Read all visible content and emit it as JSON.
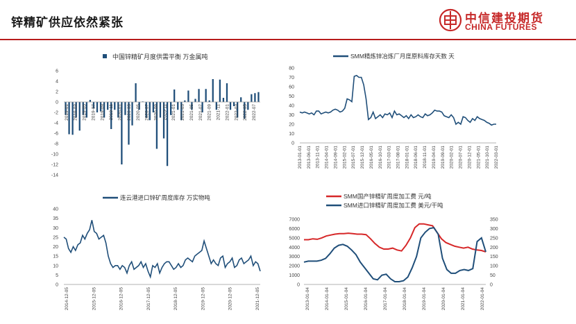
{
  "header": {
    "title": "锌精矿供应依然紧张",
    "logo_cn": "中信建投期货",
    "logo_en": "CHINA FUTURES",
    "accent_color": "#b71c1c"
  },
  "chart_data": [
    {
      "type": "bar",
      "title": "中国锌精矿月度供需平衡 万金属吨",
      "legend": [
        "中国锌精矿月度供需平衡 万金属吨"
      ],
      "color": "#1f4e79",
      "ylim": [
        -14,
        6
      ],
      "yticks": [
        6,
        4,
        2,
        0,
        -2,
        -4,
        -6,
        -8,
        -10,
        -12,
        -14
      ],
      "xtick_labels": [
        "2019-01",
        "2019-03",
        "2019-05",
        "2019-07",
        "2019-09",
        "2019-11",
        "2020-01",
        "2020-03",
        "2020-05",
        "2020-07",
        "2020-09",
        "2020-11",
        "2021-01",
        "2021-03",
        "2021-05",
        "2021-07",
        "2021-09",
        "2021-11",
        "2022-01",
        "2022-03",
        "2022-05",
        "2022-07"
      ],
      "values": [
        -2.5,
        -6.2,
        -6.3,
        -3,
        -5.5,
        -2.5,
        -3,
        0.4,
        -1.2,
        -2,
        -1.8,
        -3,
        -1.5,
        -5.2,
        -1.5,
        -3,
        -12,
        -2.5,
        -8.2,
        -4.5,
        3.6,
        -1.5,
        0.1,
        -3,
        -3.5,
        -2,
        -9,
        -3,
        -7,
        -12.3,
        -2.5,
        2.4,
        -1.5,
        -3.5,
        0.3,
        2.2,
        -1.5,
        0.6,
        2.5,
        -2,
        2.5,
        0.3,
        4.4,
        -1.5,
        4.3,
        0.8,
        3.6,
        -1.5,
        -0.8,
        -3,
        0.9,
        -3.2,
        -1.5,
        1.5,
        1.7,
        1.9
      ]
    },
    {
      "type": "line",
      "title": "SMM精炼锌冶炼厂月度原料库存天数 天",
      "legend": [
        "SMM精炼锌冶炼厂月度原料库存天数 天"
      ],
      "color": "#1f4e79",
      "ylim": [
        0,
        80
      ],
      "yticks": [
        80,
        70,
        60,
        50,
        40,
        30,
        20,
        10,
        0
      ],
      "xtick_labels": [
        "2013-01-01",
        "2013-06-01",
        "2013-11-01",
        "2014-04-01",
        "2014-09-01",
        "2015-02-01",
        "2015-07-01",
        "2015-12-01",
        "2016-05-01",
        "2016-10-01",
        "2017-03-01",
        "2017-08-01",
        "2018-01-01",
        "2018-06-01",
        "2018-11-01",
        "2019-04-01",
        "2019-09-01",
        "2020-02-01",
        "2020-07-01",
        "2020-12-01",
        "2021-05-01",
        "2021-10-01",
        "2022-03-01"
      ],
      "values": [
        33,
        32,
        33,
        32,
        31,
        32,
        30,
        34,
        34,
        31,
        32,
        33,
        32,
        33,
        35,
        36,
        35,
        33,
        34,
        37,
        47,
        46,
        44,
        71,
        72,
        70,
        70,
        62,
        47,
        25,
        27,
        33,
        26,
        28,
        30,
        27,
        31,
        30,
        32,
        27,
        34,
        30,
        31,
        29,
        27,
        29,
        26,
        30,
        27,
        28,
        30,
        28,
        27,
        31,
        29,
        30,
        32,
        35,
        34,
        34,
        33,
        29,
        28,
        27,
        30,
        27,
        20,
        22,
        20,
        28,
        27,
        24,
        22,
        26,
        24,
        28,
        26,
        25,
        24,
        22,
        21,
        19,
        20,
        20
      ]
    },
    {
      "type": "line",
      "title": "连云港进口锌矿周度库存 万实物吨",
      "legend": [
        "连云港进口锌矿周度库存 万实物吨"
      ],
      "color": "#1f4e79",
      "ylim": [
        0,
        40
      ],
      "yticks": [
        40,
        35,
        30,
        25,
        20,
        15,
        10,
        5,
        0
      ],
      "xtick_labels": [
        "2014-12-05",
        "2015-12-05",
        "2016-12-05",
        "2017-12-05",
        "2018-12-05",
        "2019-12-05",
        "2020-12-05",
        "2021-12-05"
      ],
      "values": [
        25,
        24,
        19,
        17,
        20,
        18,
        21,
        22,
        26,
        24,
        27,
        29,
        34,
        28,
        27,
        24,
        25,
        26,
        22,
        15,
        11,
        9,
        10,
        10,
        8,
        10,
        9,
        6,
        10,
        12,
        8,
        9,
        10,
        12,
        9,
        11,
        7,
        4,
        10,
        9,
        11,
        6,
        9,
        11,
        12,
        12,
        10,
        8,
        9,
        11,
        9,
        10,
        13,
        14,
        13,
        12,
        15,
        16,
        17,
        18,
        23,
        19,
        15,
        11,
        13,
        11,
        10,
        14,
        15,
        9,
        11,
        12,
        14,
        9,
        10,
        13,
        14,
        11,
        12,
        13,
        15,
        10,
        12,
        11,
        7
      ]
    },
    {
      "type": "line",
      "title": "SMM国产锌精矿周度加工费 / SMM进口锌精矿周度加工费",
      "ylim_left": [
        0,
        7000
      ],
      "yticks_left": [
        7000,
        6000,
        5000,
        4000,
        3000,
        2000,
        1000,
        0
      ],
      "ylim_right": [
        0,
        350
      ],
      "yticks_right": [
        350,
        300,
        250,
        200,
        150,
        100,
        50,
        0
      ],
      "xtick_labels": [
        "2013-01-04",
        "2014-01-04",
        "2015-01-04",
        "2016-01-04",
        "2017-01-04",
        "2018-01-04",
        "2019-01-04",
        "2020-01-04",
        "2021-01-04",
        "2022-01-04"
      ],
      "series": [
        {
          "name": "SMM国产锌精矿周度加工费 元/吨",
          "axis": "left",
          "color": "#d62728",
          "values": [
            4800,
            4800,
            4900,
            4850,
            5000,
            5200,
            5300,
            5400,
            5450,
            5450,
            5500,
            5450,
            5400,
            5400,
            5350,
            4900,
            4400,
            4000,
            3800,
            3800,
            3900,
            3700,
            3600,
            4200,
            5000,
            6100,
            6500,
            6500,
            6400,
            6300,
            5600,
            4900,
            4500,
            4300,
            4100,
            4000,
            3900,
            4000,
            3800,
            3700,
            3650,
            3500
          ]
        },
        {
          "name": "SMM进口锌精矿周度加工费 美元/干吨",
          "axis": "right",
          "color": "#1f4e79",
          "values": [
            120,
            125,
            125,
            125,
            130,
            140,
            165,
            195,
            210,
            215,
            205,
            185,
            160,
            120,
            90,
            60,
            30,
            25,
            50,
            55,
            30,
            15,
            15,
            20,
            40,
            90,
            150,
            250,
            280,
            300,
            305,
            270,
            140,
            80,
            60,
            60,
            75,
            80,
            75,
            85,
            230,
            250,
            175
          ]
        }
      ]
    }
  ]
}
